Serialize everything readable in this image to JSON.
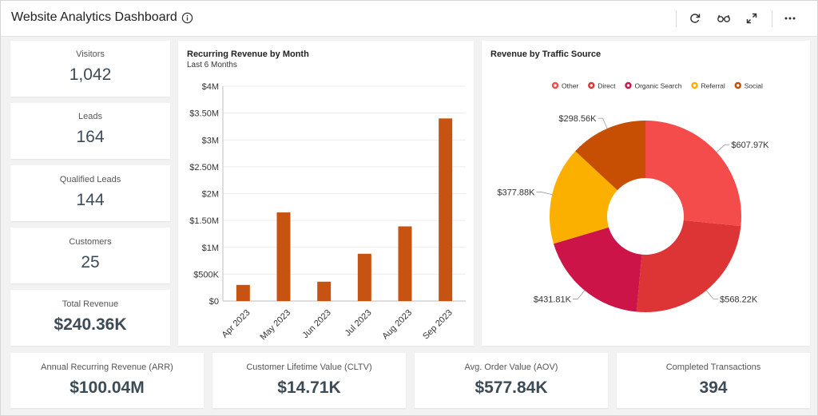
{
  "header": {
    "title": "Website Analytics Dashboard",
    "icons": [
      "info-icon",
      "refresh-icon",
      "glasses-icon",
      "expand-icon",
      "more-icon"
    ]
  },
  "kpis_left": [
    {
      "label": "Visitors",
      "value": "1,042"
    },
    {
      "label": "Leads",
      "value": "164"
    },
    {
      "label": "Qualified Leads",
      "value": "144"
    },
    {
      "label": "Customers",
      "value": "25"
    },
    {
      "label": "Total Revenue",
      "value": "$240.36K"
    }
  ],
  "kpis_bottom": [
    {
      "label": "Annual Recurring Revenue (ARR)",
      "value": "$100.04M"
    },
    {
      "label": "Customer Lifetime Value (CLTV)",
      "value": "$14.71K"
    },
    {
      "label": "Avg. Order Value (AOV)",
      "value": "$577.84K"
    },
    {
      "label": "Completed Transactions",
      "value": "394"
    }
  ],
  "bar_chart": {
    "title": "Recurring Revenue by Month",
    "subtitle": "Last 6 Months"
  },
  "pie_chart": {
    "title": "Revenue by Traffic Source"
  },
  "chart_data": [
    {
      "type": "bar",
      "title": "Recurring Revenue by Month",
      "subtitle": "Last 6 Months",
      "categories": [
        "Apr 2023",
        "May 2023",
        "Jun 2023",
        "Jul 2023",
        "Aug 2023",
        "Sep 2023"
      ],
      "values": [
        300000,
        1650000,
        360000,
        880000,
        1390000,
        3400000
      ],
      "ylim": [
        0,
        4000000
      ],
      "ytick_values": [
        0,
        500000,
        1000000,
        1500000,
        2000000,
        2500000,
        3000000,
        3500000,
        4000000
      ],
      "ytick_labels": [
        "$0",
        "$500K",
        "$1M",
        "$1.50M",
        "$2M",
        "$2.50M",
        "$3M",
        "$3.50M",
        "$4M"
      ],
      "color": "#c65311",
      "grid": true
    },
    {
      "type": "pie",
      "title": "Revenue by Traffic Source",
      "donut": true,
      "legend_position": "top",
      "slices": [
        {
          "name": "Other",
          "value": 607.97,
          "label": "$607.97K",
          "color": "#f44b4b"
        },
        {
          "name": "Direct",
          "value": 568.22,
          "label": "$568.22K",
          "color": "#dd3535"
        },
        {
          "name": "Organic Search",
          "value": 431.81,
          "label": "$431.81K",
          "color": "#cc1448"
        },
        {
          "name": "Referral",
          "value": 377.88,
          "label": "$377.88K",
          "color": "#fbb000"
        },
        {
          "name": "Social",
          "value": 298.56,
          "label": "$298.56K",
          "color": "#c64f04"
        }
      ]
    }
  ]
}
